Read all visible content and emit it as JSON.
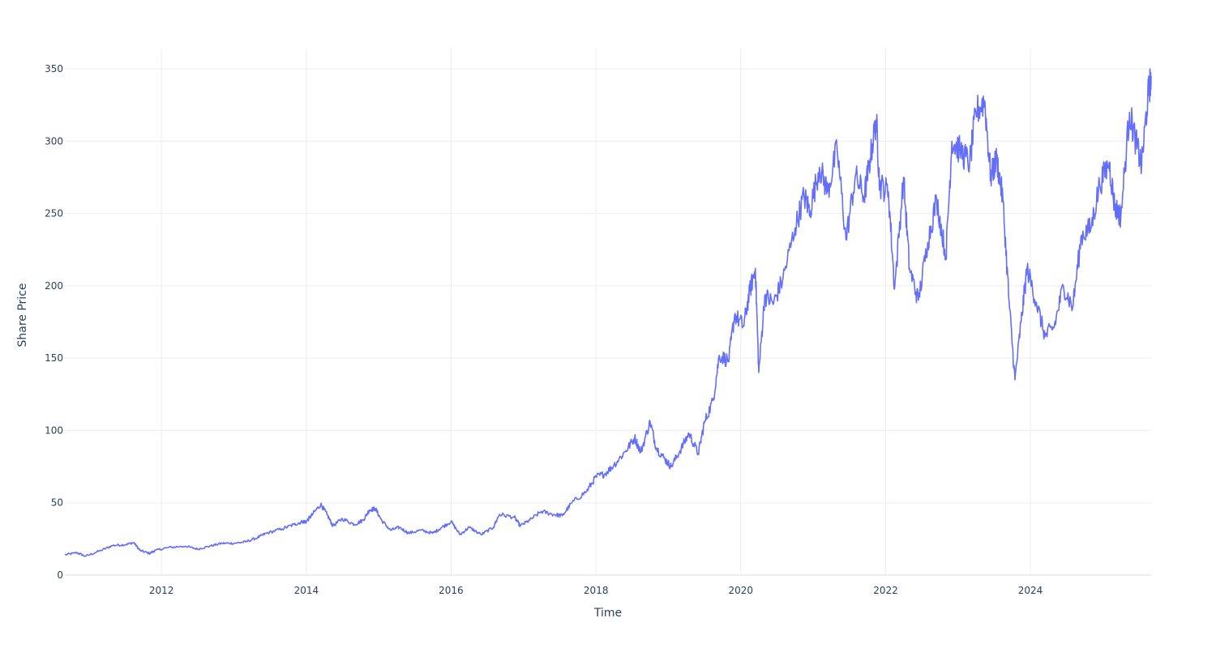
{
  "chart_data": {
    "type": "line",
    "xlabel": "Time",
    "ylabel": "Share Price",
    "xlim": [
      "2010-09-01",
      "2025-09-01"
    ],
    "ylim": [
      0,
      364
    ],
    "x_ticks": [
      "2012",
      "2014",
      "2016",
      "2018",
      "2020",
      "2022",
      "2024"
    ],
    "y_ticks": [
      0,
      50,
      100,
      150,
      200,
      250,
      300,
      350
    ],
    "grid": true,
    "legend": "none",
    "series": [
      {
        "color": "#636efa",
        "points": [
          [
            "2010-09-01",
            14
          ],
          [
            "2010-11-01",
            15.5
          ],
          [
            "2010-12-15",
            13
          ],
          [
            "2011-03-01",
            17
          ],
          [
            "2011-05-01",
            20.5
          ],
          [
            "2011-07-01",
            21
          ],
          [
            "2011-08-15",
            22.5
          ],
          [
            "2011-09-15",
            17
          ],
          [
            "2011-11-01",
            15
          ],
          [
            "2011-12-01",
            17
          ],
          [
            "2012-02-01",
            19
          ],
          [
            "2012-05-01",
            20
          ],
          [
            "2012-07-01",
            18
          ],
          [
            "2012-09-01",
            20
          ],
          [
            "2012-11-01",
            22
          ],
          [
            "2013-01-01",
            22
          ],
          [
            "2013-03-01",
            23
          ],
          [
            "2013-05-01",
            26
          ],
          [
            "2013-06-15",
            29
          ],
          [
            "2013-09-01",
            32
          ],
          [
            "2013-11-01",
            35
          ],
          [
            "2013-12-15",
            37
          ],
          [
            "2014-01-01",
            37
          ],
          [
            "2014-02-01",
            42
          ],
          [
            "2014-03-15",
            49
          ],
          [
            "2014-04-15",
            42
          ],
          [
            "2014-05-15",
            34
          ],
          [
            "2014-07-01",
            39
          ],
          [
            "2014-09-01",
            35
          ],
          [
            "2014-10-15",
            38
          ],
          [
            "2014-11-15",
            45
          ],
          [
            "2014-12-15",
            46
          ],
          [
            "2015-01-15",
            38
          ],
          [
            "2015-03-01",
            31
          ],
          [
            "2015-04-15",
            33
          ],
          [
            "2015-06-01",
            29
          ],
          [
            "2015-08-01",
            31
          ],
          [
            "2015-10-01",
            29
          ],
          [
            "2015-11-15",
            33
          ],
          [
            "2016-01-01",
            37
          ],
          [
            "2016-02-15",
            28
          ],
          [
            "2016-04-01",
            33
          ],
          [
            "2016-06-01",
            28
          ],
          [
            "2016-08-01",
            33
          ],
          [
            "2016-09-01",
            42
          ],
          [
            "2016-11-15",
            40
          ],
          [
            "2016-12-15",
            34
          ],
          [
            "2017-02-01",
            38
          ],
          [
            "2017-04-01",
            44
          ],
          [
            "2017-06-01",
            42
          ],
          [
            "2017-07-15",
            41
          ],
          [
            "2017-09-01",
            50
          ],
          [
            "2017-11-15",
            58
          ],
          [
            "2018-01-01",
            68
          ],
          [
            "2018-02-15",
            70
          ],
          [
            "2018-04-01",
            76
          ],
          [
            "2018-06-01",
            86
          ],
          [
            "2018-07-15",
            95
          ],
          [
            "2018-08-15",
            85
          ],
          [
            "2018-10-01",
            106
          ],
          [
            "2018-11-01",
            88
          ],
          [
            "2018-12-15",
            80
          ],
          [
            "2019-01-15",
            75
          ],
          [
            "2019-03-01",
            86
          ],
          [
            "2019-04-15",
            98
          ],
          [
            "2019-06-01",
            84
          ],
          [
            "2019-07-01",
            105
          ],
          [
            "2019-08-15",
            121
          ],
          [
            "2019-09-15",
            152
          ],
          [
            "2019-11-01",
            148
          ],
          [
            "2019-12-01",
            180
          ],
          [
            "2020-01-15",
            172
          ],
          [
            "2020-02-15",
            196
          ],
          [
            "2020-03-15",
            212
          ],
          [
            "2020-04-01",
            140
          ],
          [
            "2020-05-01",
            193
          ],
          [
            "2020-06-15",
            188
          ],
          [
            "2020-08-01",
            205
          ],
          [
            "2020-10-01",
            240
          ],
          [
            "2020-11-15",
            262
          ],
          [
            "2020-12-15",
            252
          ],
          [
            "2021-02-01",
            282
          ],
          [
            "2021-03-15",
            265
          ],
          [
            "2021-05-01",
            295
          ],
          [
            "2021-06-15",
            232
          ],
          [
            "2021-08-01",
            276
          ],
          [
            "2021-09-15",
            262
          ],
          [
            "2021-10-15",
            288
          ],
          [
            "2021-11-15",
            315
          ],
          [
            "2021-12-01",
            270
          ],
          [
            "2022-01-15",
            265
          ],
          [
            "2022-02-15",
            198
          ],
          [
            "2022-04-01",
            275
          ],
          [
            "2022-05-01",
            212
          ],
          [
            "2022-06-15",
            190
          ],
          [
            "2022-08-01",
            230
          ],
          [
            "2022-09-15",
            260
          ],
          [
            "2022-11-01",
            220
          ],
          [
            "2022-12-01",
            300
          ],
          [
            "2023-01-15",
            293
          ],
          [
            "2023-03-01",
            285
          ],
          [
            "2023-04-01",
            320
          ],
          [
            "2023-05-15",
            328
          ],
          [
            "2023-06-15",
            275
          ],
          [
            "2023-07-15",
            288
          ],
          [
            "2023-08-15",
            260
          ],
          [
            "2023-09-15",
            190
          ],
          [
            "2023-10-15",
            135
          ],
          [
            "2023-11-15",
            175
          ],
          [
            "2023-12-15",
            212
          ],
          [
            "2024-02-01",
            188
          ],
          [
            "2024-03-15",
            165
          ],
          [
            "2024-05-01",
            172
          ],
          [
            "2024-06-15",
            200
          ],
          [
            "2024-08-01",
            185
          ],
          [
            "2024-09-15",
            235
          ],
          [
            "2024-11-01",
            240
          ],
          [
            "2024-12-15",
            270
          ],
          [
            "2025-02-01",
            285
          ],
          [
            "2025-03-01",
            255
          ],
          [
            "2025-04-01",
            248
          ],
          [
            "2025-05-15",
            320
          ],
          [
            "2025-06-15",
            300
          ],
          [
            "2025-07-15",
            283
          ],
          [
            "2025-08-15",
            330
          ],
          [
            "2025-09-01",
            345
          ]
        ]
      }
    ]
  }
}
